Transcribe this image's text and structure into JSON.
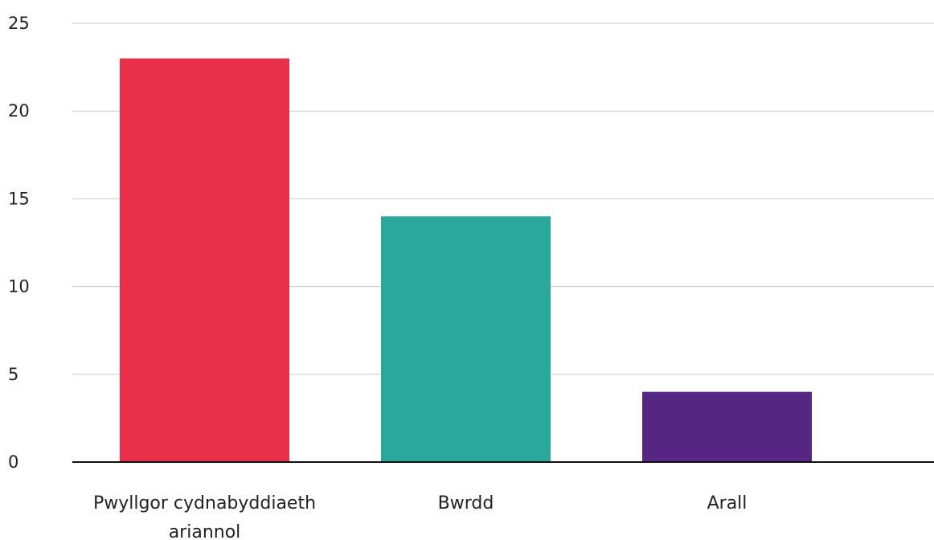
{
  "chart_data": {
    "type": "bar",
    "categories": [
      "Pwyllgor cydnabyddiaeth ariannol",
      "Bwrdd",
      "Arall"
    ],
    "category_label_lines": [
      [
        "Pwyllgor cydnabyddiaeth",
        "ariannol"
      ],
      [
        "Bwrdd"
      ],
      [
        "Arall"
      ]
    ],
    "values": [
      23,
      14,
      4
    ],
    "colors": [
      "#e8304a",
      "#2aa89b",
      "#552682"
    ],
    "title": "",
    "xlabel": "",
    "ylabel": "",
    "ylim": [
      0,
      25
    ],
    "yticks": [
      0,
      5,
      10,
      15,
      20,
      25
    ],
    "ytick_labels": [
      "0",
      "5",
      "10",
      "15",
      "20",
      "25"
    ],
    "grid": true,
    "legend": "none"
  }
}
